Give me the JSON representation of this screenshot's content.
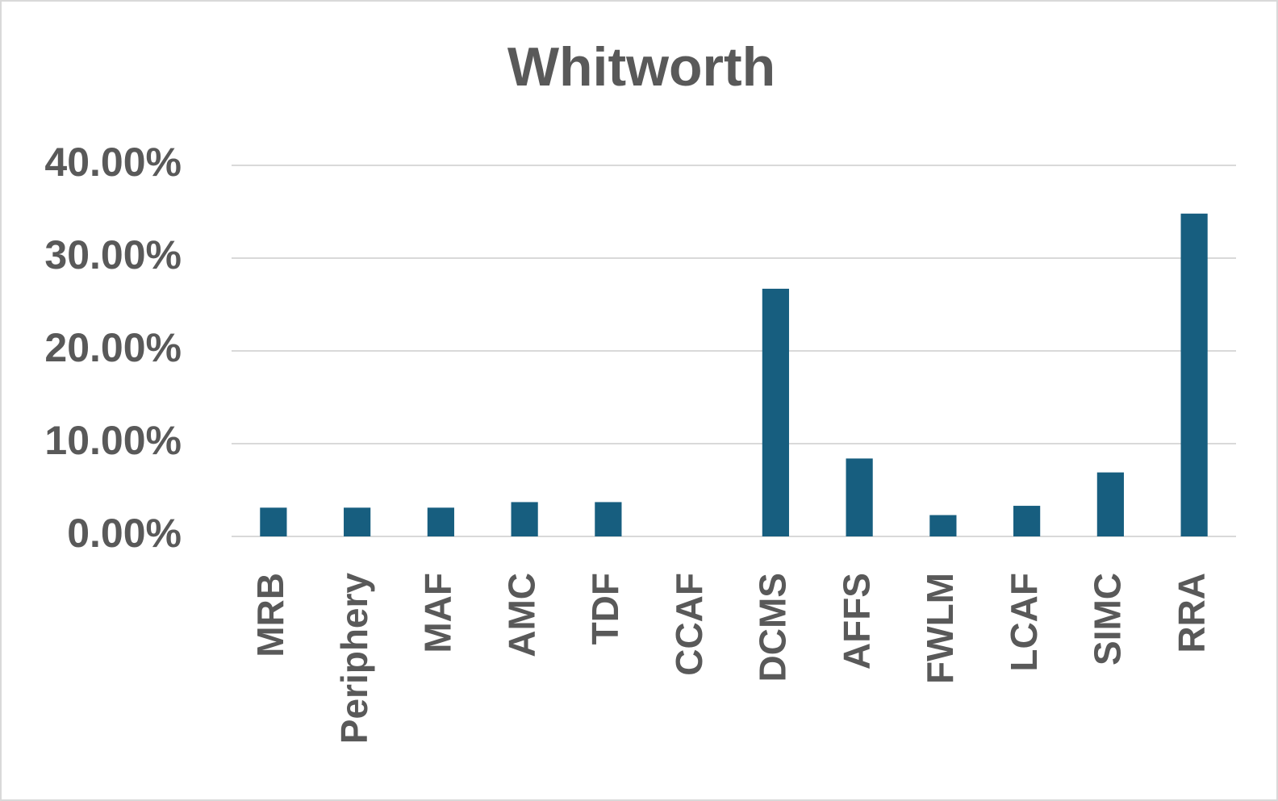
{
  "chart_data": {
    "type": "bar",
    "title": "Whitworth",
    "categories": [
      "MRB",
      "Periphery",
      "MAF",
      "AMC",
      "TDF",
      "CCAF",
      "DCMS",
      "AFFS",
      "FWLM",
      "LCAF",
      "SIMC",
      "RRA"
    ],
    "values": [
      3.1,
      3.1,
      3.1,
      3.7,
      3.7,
      0,
      26.7,
      8.4,
      2.3,
      3.3,
      6.9,
      34.8
    ],
    "color": "#175e7f",
    "ylim": [
      0,
      40
    ],
    "yticks": [
      {
        "value": 0,
        "label": "0.00%"
      },
      {
        "value": 10,
        "label": "10.00%"
      },
      {
        "value": 20,
        "label": "20.00%"
      },
      {
        "value": 30,
        "label": "30.00%"
      },
      {
        "value": 40,
        "label": "40.00%"
      }
    ],
    "grid": true
  }
}
